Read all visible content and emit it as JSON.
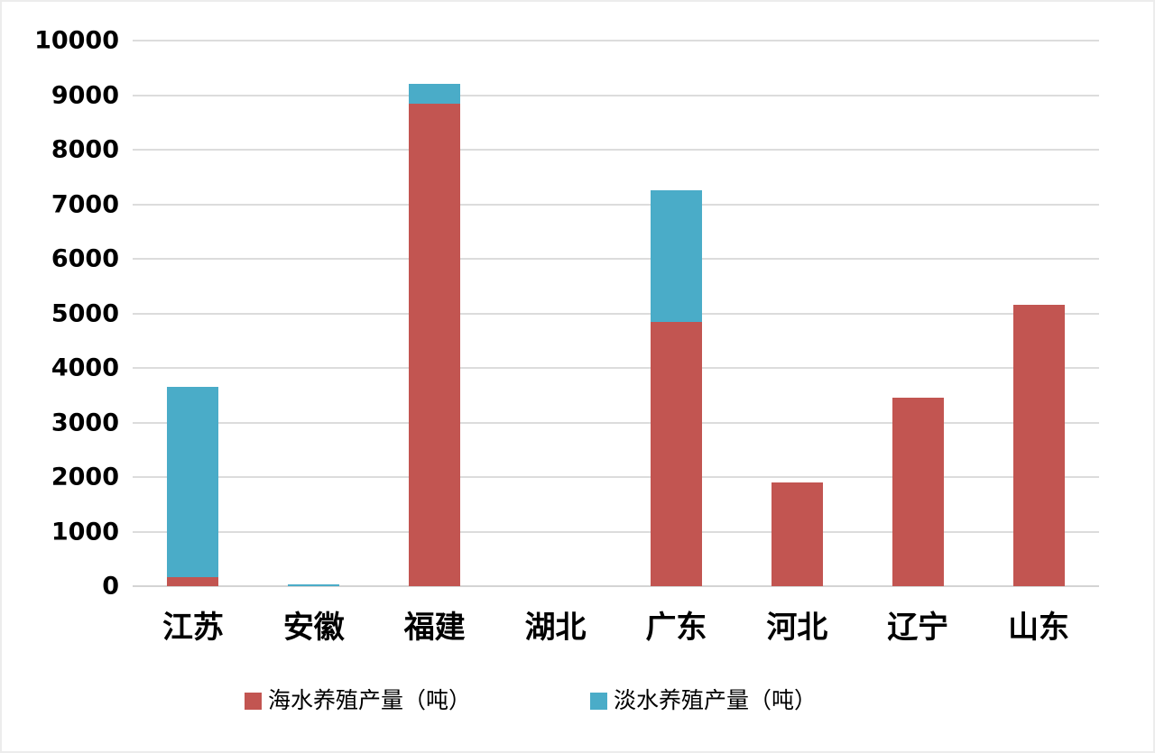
{
  "chart_data": {
    "type": "bar",
    "subtype": "stacked-vertical",
    "title": "",
    "xlabel": "",
    "ylabel": "",
    "categories": [
      "江苏",
      "安徽",
      "福建",
      "湖北",
      "广东",
      "河北",
      "辽宁",
      "山东"
    ],
    "series": [
      {
        "name": "海水养殖产量（吨）",
        "color": "#c25551",
        "values": [
          170,
          0,
          8850,
          0,
          4850,
          1900,
          3450,
          5150
        ]
      },
      {
        "name": "淡水养殖产量（吨）",
        "color": "#4aacc8",
        "values": [
          3480,
          30,
          350,
          0,
          2400,
          0,
          0,
          0
        ]
      }
    ],
    "y_axis": {
      "min": 0,
      "max": 10000,
      "step": 1000,
      "tick_labels": [
        "0",
        "1000",
        "2000",
        "3000",
        "4000",
        "5000",
        "6000",
        "7000",
        "8000",
        "9000",
        "10000"
      ]
    },
    "grid": true,
    "gridline_color": "#dcdcdc",
    "legend_position": "bottom"
  }
}
